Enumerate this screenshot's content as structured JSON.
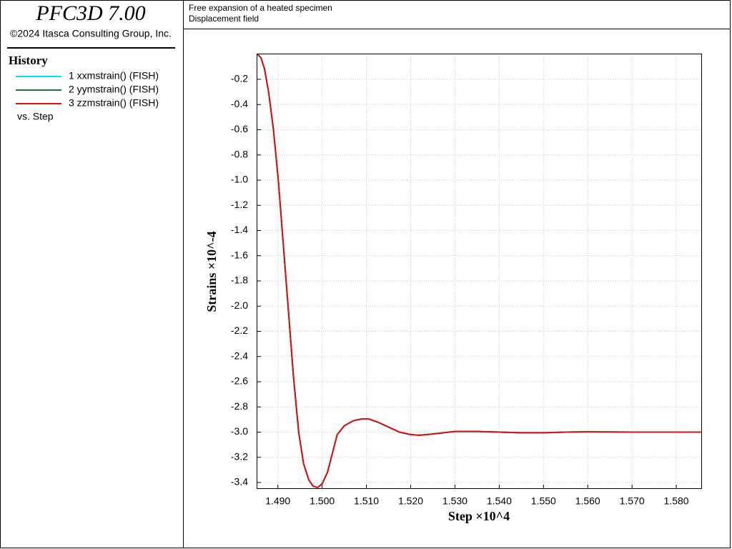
{
  "app": {
    "title": "PFC3D 7.00",
    "copyright": "©2024 Itasca Consulting Group, Inc.",
    "legend_title": "History",
    "vs_label": "vs. Step"
  },
  "header": {
    "lines": [
      "Free expansion of a heated specimen",
      "Displacement field"
    ]
  },
  "chart_data": {
    "type": "line",
    "x_label": "Step ×10^4",
    "y_label": "Strains ×10^-4",
    "x": [
      1.4854,
      1.4862,
      1.487,
      1.4879,
      1.489,
      1.4901,
      1.4912,
      1.4923,
      1.4935,
      1.4947,
      1.4958,
      1.497,
      1.498,
      1.499,
      1.5,
      1.5012,
      1.5023,
      1.5034,
      1.505,
      1.507,
      1.509,
      1.5105,
      1.5125,
      1.515,
      1.5175,
      1.52,
      1.522,
      1.525,
      1.53,
      1.535,
      1.54,
      1.545,
      1.55,
      1.555,
      1.56,
      1.57,
      1.5858
    ],
    "series": [
      {
        "name": "1 xxmstrain() (FISH)",
        "color": "#00e5ee",
        "values": [
          0,
          -0.03,
          -0.12,
          -0.3,
          -0.6,
          -1.0,
          -1.5,
          -2.0,
          -2.55,
          -3.0,
          -3.25,
          -3.38,
          -3.43,
          -3.44,
          -3.41,
          -3.32,
          -3.17,
          -3.02,
          -2.95,
          -2.91,
          -2.895,
          -2.895,
          -2.92,
          -2.96,
          -3.0,
          -3.02,
          -3.025,
          -3.015,
          -2.995,
          -2.995,
          -3.0,
          -3.005,
          -3.005,
          -3.0,
          -2.998,
          -3.0,
          -3.0
        ]
      },
      {
        "name": "2 yymstrain() (FISH)",
        "color": "#1e7a3c",
        "values": [
          0,
          -0.03,
          -0.12,
          -0.3,
          -0.6,
          -1.0,
          -1.5,
          -2.0,
          -2.55,
          -3.0,
          -3.25,
          -3.38,
          -3.43,
          -3.44,
          -3.41,
          -3.32,
          -3.17,
          -3.02,
          -2.95,
          -2.91,
          -2.895,
          -2.895,
          -2.92,
          -2.96,
          -3.0,
          -3.02,
          -3.025,
          -3.015,
          -2.995,
          -2.995,
          -3.0,
          -3.005,
          -3.005,
          -3.0,
          -2.998,
          -3.0,
          -3.0
        ]
      },
      {
        "name": "3 zzmstrain() (FISH)",
        "color": "#e01010",
        "values": [
          0,
          -0.03,
          -0.12,
          -0.3,
          -0.6,
          -1.0,
          -1.5,
          -2.0,
          -2.55,
          -3.0,
          -3.25,
          -3.38,
          -3.43,
          -3.44,
          -3.41,
          -3.32,
          -3.17,
          -3.02,
          -2.95,
          -2.91,
          -2.895,
          -2.895,
          -2.92,
          -2.96,
          -3.0,
          -3.02,
          -3.025,
          -3.015,
          -2.995,
          -2.995,
          -3.0,
          -3.005,
          -3.005,
          -3.0,
          -2.998,
          -3.0,
          -3.0
        ]
      }
    ],
    "xlim": [
      1.4852,
      1.5858
    ],
    "ylim": [
      -3.451,
      0.004
    ],
    "xticks": [
      {
        "value": 1.49,
        "label": "1.490"
      },
      {
        "value": 1.5,
        "label": "1.500"
      },
      {
        "value": 1.51,
        "label": "1.510"
      },
      {
        "value": 1.52,
        "label": "1.520"
      },
      {
        "value": 1.53,
        "label": "1.530"
      },
      {
        "value": 1.54,
        "label": "1.540"
      },
      {
        "value": 1.55,
        "label": "1.550"
      },
      {
        "value": 1.56,
        "label": "1.560"
      },
      {
        "value": 1.57,
        "label": "1.570"
      },
      {
        "value": 1.58,
        "label": "1.580"
      }
    ],
    "yticks": [
      -0.2,
      -0.4,
      -0.6,
      -0.8,
      {
        "value": -1.0,
        "label": "-1.0"
      },
      -1.2,
      -1.4,
      -1.6,
      -1.8,
      {
        "value": -2.0,
        "label": "-2.0"
      },
      -2.2,
      -2.4,
      -2.6,
      -2.8,
      {
        "value": -3.0,
        "label": "-3.0"
      },
      -3.2,
      -3.4
    ],
    "grid": true
  }
}
